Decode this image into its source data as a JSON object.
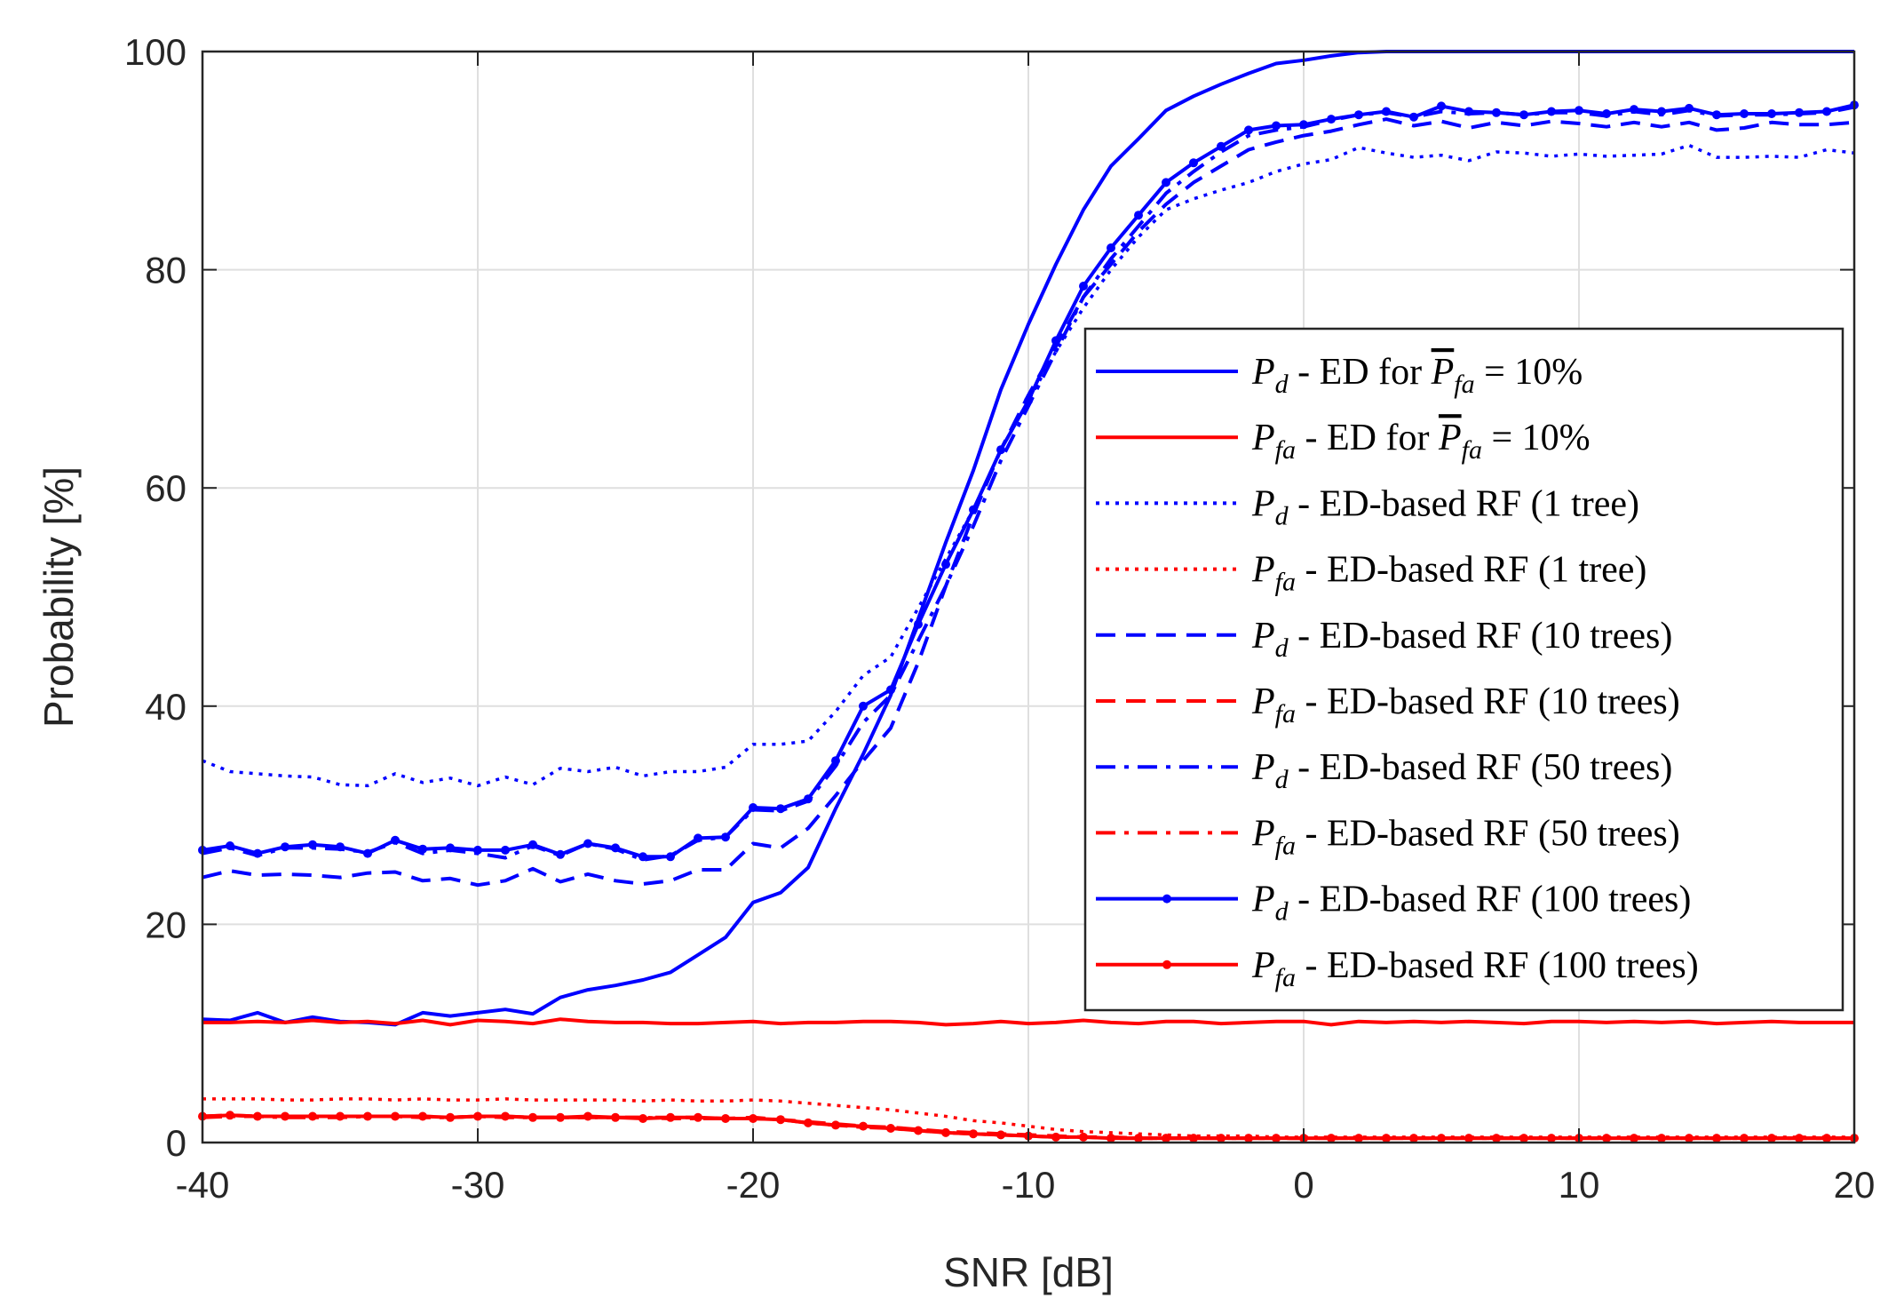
{
  "chart_data": {
    "type": "line",
    "title": "",
    "xlabel": "SNR [dB]",
    "ylabel": "Probability [%]",
    "xlim": [
      -40,
      20
    ],
    "ylim": [
      0,
      100
    ],
    "xticks": [
      -40,
      -30,
      -20,
      -10,
      0,
      10,
      20
    ],
    "yticks": [
      0,
      20,
      40,
      60,
      80,
      100
    ],
    "xtick_labels": [
      "-40",
      "-30",
      "-20",
      "-10",
      "0",
      "10",
      "20"
    ],
    "ytick_labels": [
      "0",
      "20",
      "40",
      "60",
      "80",
      "100"
    ],
    "grid": true,
    "legend_position": "right-center",
    "x": [
      -40,
      -39,
      -38,
      -37,
      -36,
      -35,
      -34,
      -33,
      -32,
      -31,
      -30,
      -29,
      -28,
      -27,
      -26,
      -25,
      -24,
      -23,
      -22,
      -21,
      -20,
      -19,
      -18,
      -17,
      -16,
      -15,
      -14,
      -13,
      -12,
      -11,
      -10,
      -9,
      -8,
      -7,
      -6,
      -5,
      -4,
      -3,
      -2,
      -1,
      0,
      1,
      2,
      3,
      4,
      5,
      6,
      7,
      8,
      9,
      10,
      11,
      12,
      13,
      14,
      15,
      16,
      17,
      18,
      19,
      20
    ],
    "series": [
      {
        "name": "Pd - ED for P̄fa = 10%",
        "legend": {
          "sym": "P",
          "sub": "d",
          "text": " - ED for ",
          "bar": true,
          "sub2": "fa",
          "tail": " = 10%"
        },
        "color": "#0000ff",
        "style": "solid",
        "marker": false,
        "values": [
          11.3,
          11.2,
          11.9,
          11.0,
          11.5,
          11.1,
          11.0,
          10.8,
          11.9,
          11.6,
          11.9,
          12.2,
          11.8,
          13.3,
          14.0,
          14.4,
          14.9,
          15.6,
          17.2,
          18.8,
          22.0,
          22.9,
          25.2,
          30.6,
          35.6,
          41.0,
          48.0,
          55.0,
          61.6,
          69.0,
          75.0,
          80.5,
          85.5,
          89.5,
          92.0,
          94.6,
          95.9,
          97.0,
          98.0,
          98.9,
          99.2,
          99.6,
          99.9,
          100,
          100,
          100,
          100,
          100,
          100,
          100,
          100,
          100,
          100,
          100,
          100,
          100,
          100,
          100,
          100,
          100,
          100
        ]
      },
      {
        "name": "Pfa - ED for P̄fa = 10%",
        "legend": {
          "sym": "P",
          "sub": "fa",
          "text": " - ED for ",
          "bar": true,
          "sub2": "fa",
          "tail": " = 10%"
        },
        "color": "#ff0000",
        "style": "solid",
        "marker": false,
        "values": [
          11.0,
          11.0,
          11.1,
          11.0,
          11.2,
          11.0,
          11.1,
          10.9,
          11.2,
          10.8,
          11.2,
          11.1,
          10.9,
          11.3,
          11.1,
          11.0,
          11.0,
          10.9,
          10.9,
          11.0,
          11.1,
          10.9,
          11.0,
          11.0,
          11.1,
          11.1,
          11.0,
          10.8,
          10.9,
          11.1,
          10.9,
          11.0,
          11.2,
          11.0,
          10.9,
          11.1,
          11.1,
          10.9,
          11.0,
          11.1,
          11.1,
          10.8,
          11.1,
          11.0,
          11.1,
          11.0,
          11.1,
          11.0,
          10.9,
          11.1,
          11.1,
          11.0,
          11.1,
          11.0,
          11.1,
          10.9,
          11.0,
          11.1,
          11.0,
          11.0,
          11.0
        ]
      },
      {
        "name": "Pd - ED-based RF (1 tree)",
        "legend": {
          "sym": "P",
          "sub": "d",
          "text": " - ED-based RF (1 tree)"
        },
        "color": "#0000ff",
        "style": "dotted",
        "marker": false,
        "values": [
          35.0,
          34.0,
          33.8,
          33.6,
          33.5,
          32.8,
          32.7,
          33.8,
          33.0,
          33.4,
          32.7,
          33.5,
          32.8,
          34.3,
          34.0,
          34.4,
          33.6,
          34.0,
          34.0,
          34.4,
          36.5,
          36.5,
          36.8,
          39.5,
          42.8,
          44.5,
          49.0,
          53.5,
          58.0,
          63.5,
          68.0,
          72.5,
          76.5,
          80.0,
          83.0,
          85.5,
          86.5,
          87.3,
          88.0,
          89.0,
          89.7,
          90.1,
          91.2,
          90.7,
          90.3,
          90.5,
          90.0,
          90.8,
          90.7,
          90.4,
          90.6,
          90.4,
          90.5,
          90.6,
          91.4,
          90.3,
          90.3,
          90.4,
          90.3,
          91.0,
          90.7
        ]
      },
      {
        "name": "Pfa - ED-based RF (1 tree)",
        "legend": {
          "sym": "P",
          "sub": "fa",
          "text": " - ED-based RF (1 tree)"
        },
        "color": "#ff0000",
        "style": "dotted",
        "marker": false,
        "values": [
          4.0,
          4.0,
          4.0,
          3.9,
          3.9,
          4.0,
          4.0,
          3.9,
          4.0,
          3.9,
          3.9,
          4.0,
          3.9,
          3.9,
          3.9,
          3.9,
          3.8,
          3.9,
          3.8,
          3.8,
          3.9,
          3.8,
          3.6,
          3.4,
          3.2,
          3.0,
          2.7,
          2.4,
          2.0,
          1.8,
          1.5,
          1.2,
          1.0,
          0.9,
          0.8,
          0.7,
          0.6,
          0.6,
          0.6,
          0.5,
          0.5,
          0.5,
          0.5,
          0.5,
          0.5,
          0.5,
          0.5,
          0.5,
          0.5,
          0.5,
          0.5,
          0.5,
          0.5,
          0.5,
          0.5,
          0.5,
          0.5,
          0.5,
          0.5,
          0.5,
          0.5
        ]
      },
      {
        "name": "Pd - ED-based RF (10 trees)",
        "legend": {
          "sym": "P",
          "sub": "d",
          "text": " - ED-based RF (10 trees)"
        },
        "color": "#0000ff",
        "style": "dashed",
        "marker": false,
        "values": [
          24.3,
          24.9,
          24.5,
          24.6,
          24.5,
          24.3,
          24.7,
          24.8,
          24.0,
          24.2,
          23.6,
          24.0,
          25.1,
          23.9,
          24.6,
          24.0,
          23.7,
          24.0,
          25.0,
          25.0,
          27.4,
          27.0,
          28.8,
          31.8,
          35.0,
          38.0,
          44.0,
          51.0,
          57.5,
          63.5,
          68.5,
          73.0,
          77.5,
          80.5,
          83.5,
          86.0,
          88.0,
          89.5,
          91.0,
          91.7,
          92.3,
          92.7,
          93.3,
          93.8,
          93.2,
          93.6,
          93.0,
          93.5,
          93.2,
          93.6,
          93.4,
          93.1,
          93.5,
          93.1,
          93.5,
          92.8,
          93.0,
          93.5,
          93.3,
          93.3,
          93.5
        ]
      },
      {
        "name": "Pfa - ED-based RF (10 trees)",
        "legend": {
          "sym": "P",
          "sub": "fa",
          "text": " - ED-based RF (10 trees)"
        },
        "color": "#ff0000",
        "style": "dashed",
        "marker": false,
        "values": [
          2.4,
          2.5,
          2.4,
          2.4,
          2.4,
          2.4,
          2.4,
          2.4,
          2.4,
          2.3,
          2.4,
          2.4,
          2.3,
          2.3,
          2.3,
          2.3,
          2.3,
          2.3,
          2.3,
          2.2,
          2.3,
          2.1,
          1.9,
          1.7,
          1.5,
          1.4,
          1.2,
          1.0,
          0.9,
          0.8,
          0.7,
          0.6,
          0.5,
          0.5,
          0.4,
          0.4,
          0.4,
          0.4,
          0.4,
          0.4,
          0.4,
          0.4,
          0.4,
          0.4,
          0.4,
          0.4,
          0.4,
          0.4,
          0.4,
          0.4,
          0.4,
          0.4,
          0.4,
          0.4,
          0.4,
          0.4,
          0.4,
          0.4,
          0.4,
          0.4,
          0.4
        ]
      },
      {
        "name": "Pd - ED-based RF (50 trees)",
        "legend": {
          "sym": "P",
          "sub": "d",
          "text": " - ED-based RF (50 trees)"
        },
        "color": "#0000ff",
        "style": "dashdot",
        "marker": false,
        "values": [
          26.5,
          27.0,
          26.3,
          27.0,
          27.0,
          26.9,
          26.6,
          27.5,
          26.5,
          26.8,
          26.5,
          26.1,
          27.2,
          26.3,
          27.4,
          26.9,
          25.9,
          26.3,
          27.7,
          28.0,
          30.5,
          30.4,
          31.3,
          34.5,
          38.5,
          41.0,
          46.0,
          51.0,
          56.5,
          62.5,
          67.5,
          72.5,
          77.5,
          81.0,
          84.0,
          87.0,
          89.0,
          90.8,
          92.3,
          92.8,
          93.1,
          93.7,
          94.2,
          94.4,
          94.0,
          94.5,
          94.3,
          94.4,
          94.2,
          94.4,
          94.4,
          94.1,
          94.5,
          94.2,
          94.6,
          94.1,
          94.2,
          94.2,
          94.3,
          94.4,
          94.9
        ]
      },
      {
        "name": "Pfa - ED-based RF (50 trees)",
        "legend": {
          "sym": "P",
          "sub": "fa",
          "text": " - ED-based RF (50 trees)"
        },
        "color": "#ff0000",
        "style": "dashdot",
        "marker": false,
        "values": [
          2.3,
          2.4,
          2.4,
          2.3,
          2.3,
          2.3,
          2.4,
          2.4,
          2.3,
          2.3,
          2.4,
          2.3,
          2.3,
          2.3,
          2.3,
          2.3,
          2.3,
          2.2,
          2.2,
          2.2,
          2.2,
          2.1,
          1.8,
          1.6,
          1.4,
          1.3,
          1.1,
          0.9,
          0.8,
          0.7,
          0.6,
          0.5,
          0.5,
          0.4,
          0.4,
          0.4,
          0.4,
          0.4,
          0.4,
          0.4,
          0.4,
          0.4,
          0.4,
          0.4,
          0.4,
          0.4,
          0.4,
          0.4,
          0.4,
          0.4,
          0.4,
          0.4,
          0.4,
          0.4,
          0.4,
          0.4,
          0.4,
          0.4,
          0.4,
          0.4,
          0.4
        ]
      },
      {
        "name": "Pd - ED-based RF (100 trees)",
        "legend": {
          "sym": "P",
          "sub": "d",
          "text": " - ED-based RF (100 trees)"
        },
        "color": "#0000ff",
        "style": "solid",
        "marker": true,
        "values": [
          26.8,
          27.2,
          26.5,
          27.1,
          27.3,
          27.1,
          26.5,
          27.7,
          26.9,
          27.0,
          26.8,
          26.8,
          27.3,
          26.4,
          27.4,
          27.0,
          26.2,
          26.2,
          27.9,
          28.0,
          30.7,
          30.6,
          31.5,
          35.0,
          40.0,
          41.5,
          47.5,
          53.0,
          58.0,
          63.5,
          68.0,
          73.5,
          78.5,
          82.0,
          85.0,
          88.0,
          89.8,
          91.3,
          92.8,
          93.2,
          93.3,
          93.8,
          94.2,
          94.5,
          94.0,
          95.0,
          94.5,
          94.4,
          94.2,
          94.5,
          94.6,
          94.3,
          94.7,
          94.5,
          94.8,
          94.2,
          94.3,
          94.3,
          94.4,
          94.5,
          95.1
        ]
      },
      {
        "name": "Pfa - ED-based RF (100 trees)",
        "legend": {
          "sym": "P",
          "sub": "fa",
          "text": " - ED-based RF (100 trees)"
        },
        "color": "#ff0000",
        "style": "solid",
        "marker": true,
        "values": [
          2.4,
          2.5,
          2.4,
          2.4,
          2.4,
          2.4,
          2.4,
          2.4,
          2.4,
          2.3,
          2.4,
          2.4,
          2.3,
          2.3,
          2.4,
          2.3,
          2.2,
          2.3,
          2.3,
          2.2,
          2.2,
          2.1,
          1.8,
          1.6,
          1.5,
          1.3,
          1.1,
          0.9,
          0.8,
          0.7,
          0.6,
          0.5,
          0.5,
          0.4,
          0.4,
          0.4,
          0.4,
          0.4,
          0.4,
          0.4,
          0.4,
          0.4,
          0.4,
          0.4,
          0.4,
          0.4,
          0.4,
          0.4,
          0.4,
          0.4,
          0.4,
          0.4,
          0.4,
          0.4,
          0.4,
          0.4,
          0.4,
          0.4,
          0.4,
          0.4,
          0.4
        ]
      }
    ]
  }
}
